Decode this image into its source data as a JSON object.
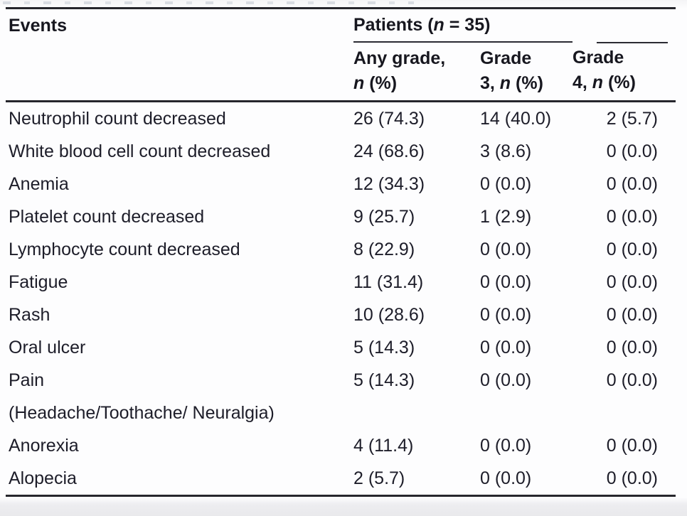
{
  "colors": {
    "text": "#1d1d29",
    "header_text": "#17171f",
    "rule": "#26262c",
    "page_background": "#fdfdfe",
    "bottom_band": "#e9e9ec"
  },
  "table": {
    "header": {
      "events_label": "Events",
      "patients": {
        "pre": "Patients (",
        "it": "n",
        "post": " = 35)"
      },
      "columns": [
        {
          "line1": "Any grade,",
          "l2pre": "",
          "l2it": "n",
          "l2post": " (%)"
        },
        {
          "line1": "Grade",
          "l2pre": "3, ",
          "l2it": "n",
          "l2post": " (%)"
        },
        {
          "line1": "Grade",
          "l2pre": "4, ",
          "l2it": "n",
          "l2post": " (%)"
        }
      ]
    },
    "rows": [
      {
        "event": "Neutrophil count decreased",
        "any": "26 (74.3)",
        "g3": "14 (40.0)",
        "g4": "2 (5.7)"
      },
      {
        "event": "White blood cell count decreased",
        "any": "24 (68.6)",
        "g3": "3 (8.6)",
        "g4": "0 (0.0)"
      },
      {
        "event": "Anemia",
        "any": "12 (34.3)",
        "g3": "0 (0.0)",
        "g4": "0 (0.0)"
      },
      {
        "event": "Platelet count decreased",
        "any": "9 (25.7)",
        "g3": "1 (2.9)",
        "g4": "0 (0.0)"
      },
      {
        "event": "Lymphocyte count decreased",
        "any": "8 (22.9)",
        "g3": "0 (0.0)",
        "g4": "0 (0.0)"
      },
      {
        "event": "Fatigue",
        "any": "11 (31.4)",
        "g3": "0 (0.0)",
        "g4": "0 (0.0)"
      },
      {
        "event": "Rash",
        "any": "10 (28.6)",
        "g3": "0 (0.0)",
        "g4": "0 (0.0)"
      },
      {
        "event": "Oral ulcer",
        "any": "5 (14.3)",
        "g3": "0 (0.0)",
        "g4": "0 (0.0)"
      },
      {
        "event": "Pain",
        "event2": "(Headache/Toothache/ Neuralgia)",
        "any": "5 (14.3)",
        "g3": "0 (0.0)",
        "g4": "0 (0.0)"
      },
      {
        "event": "Anorexia",
        "any": "4 (11.4)",
        "g3": "0 (0.0)",
        "g4": "0 (0.0)"
      },
      {
        "event": "Alopecia",
        "any": "2 (5.7)",
        "g3": "0 (0.0)",
        "g4": "0 (0.0)"
      }
    ]
  }
}
